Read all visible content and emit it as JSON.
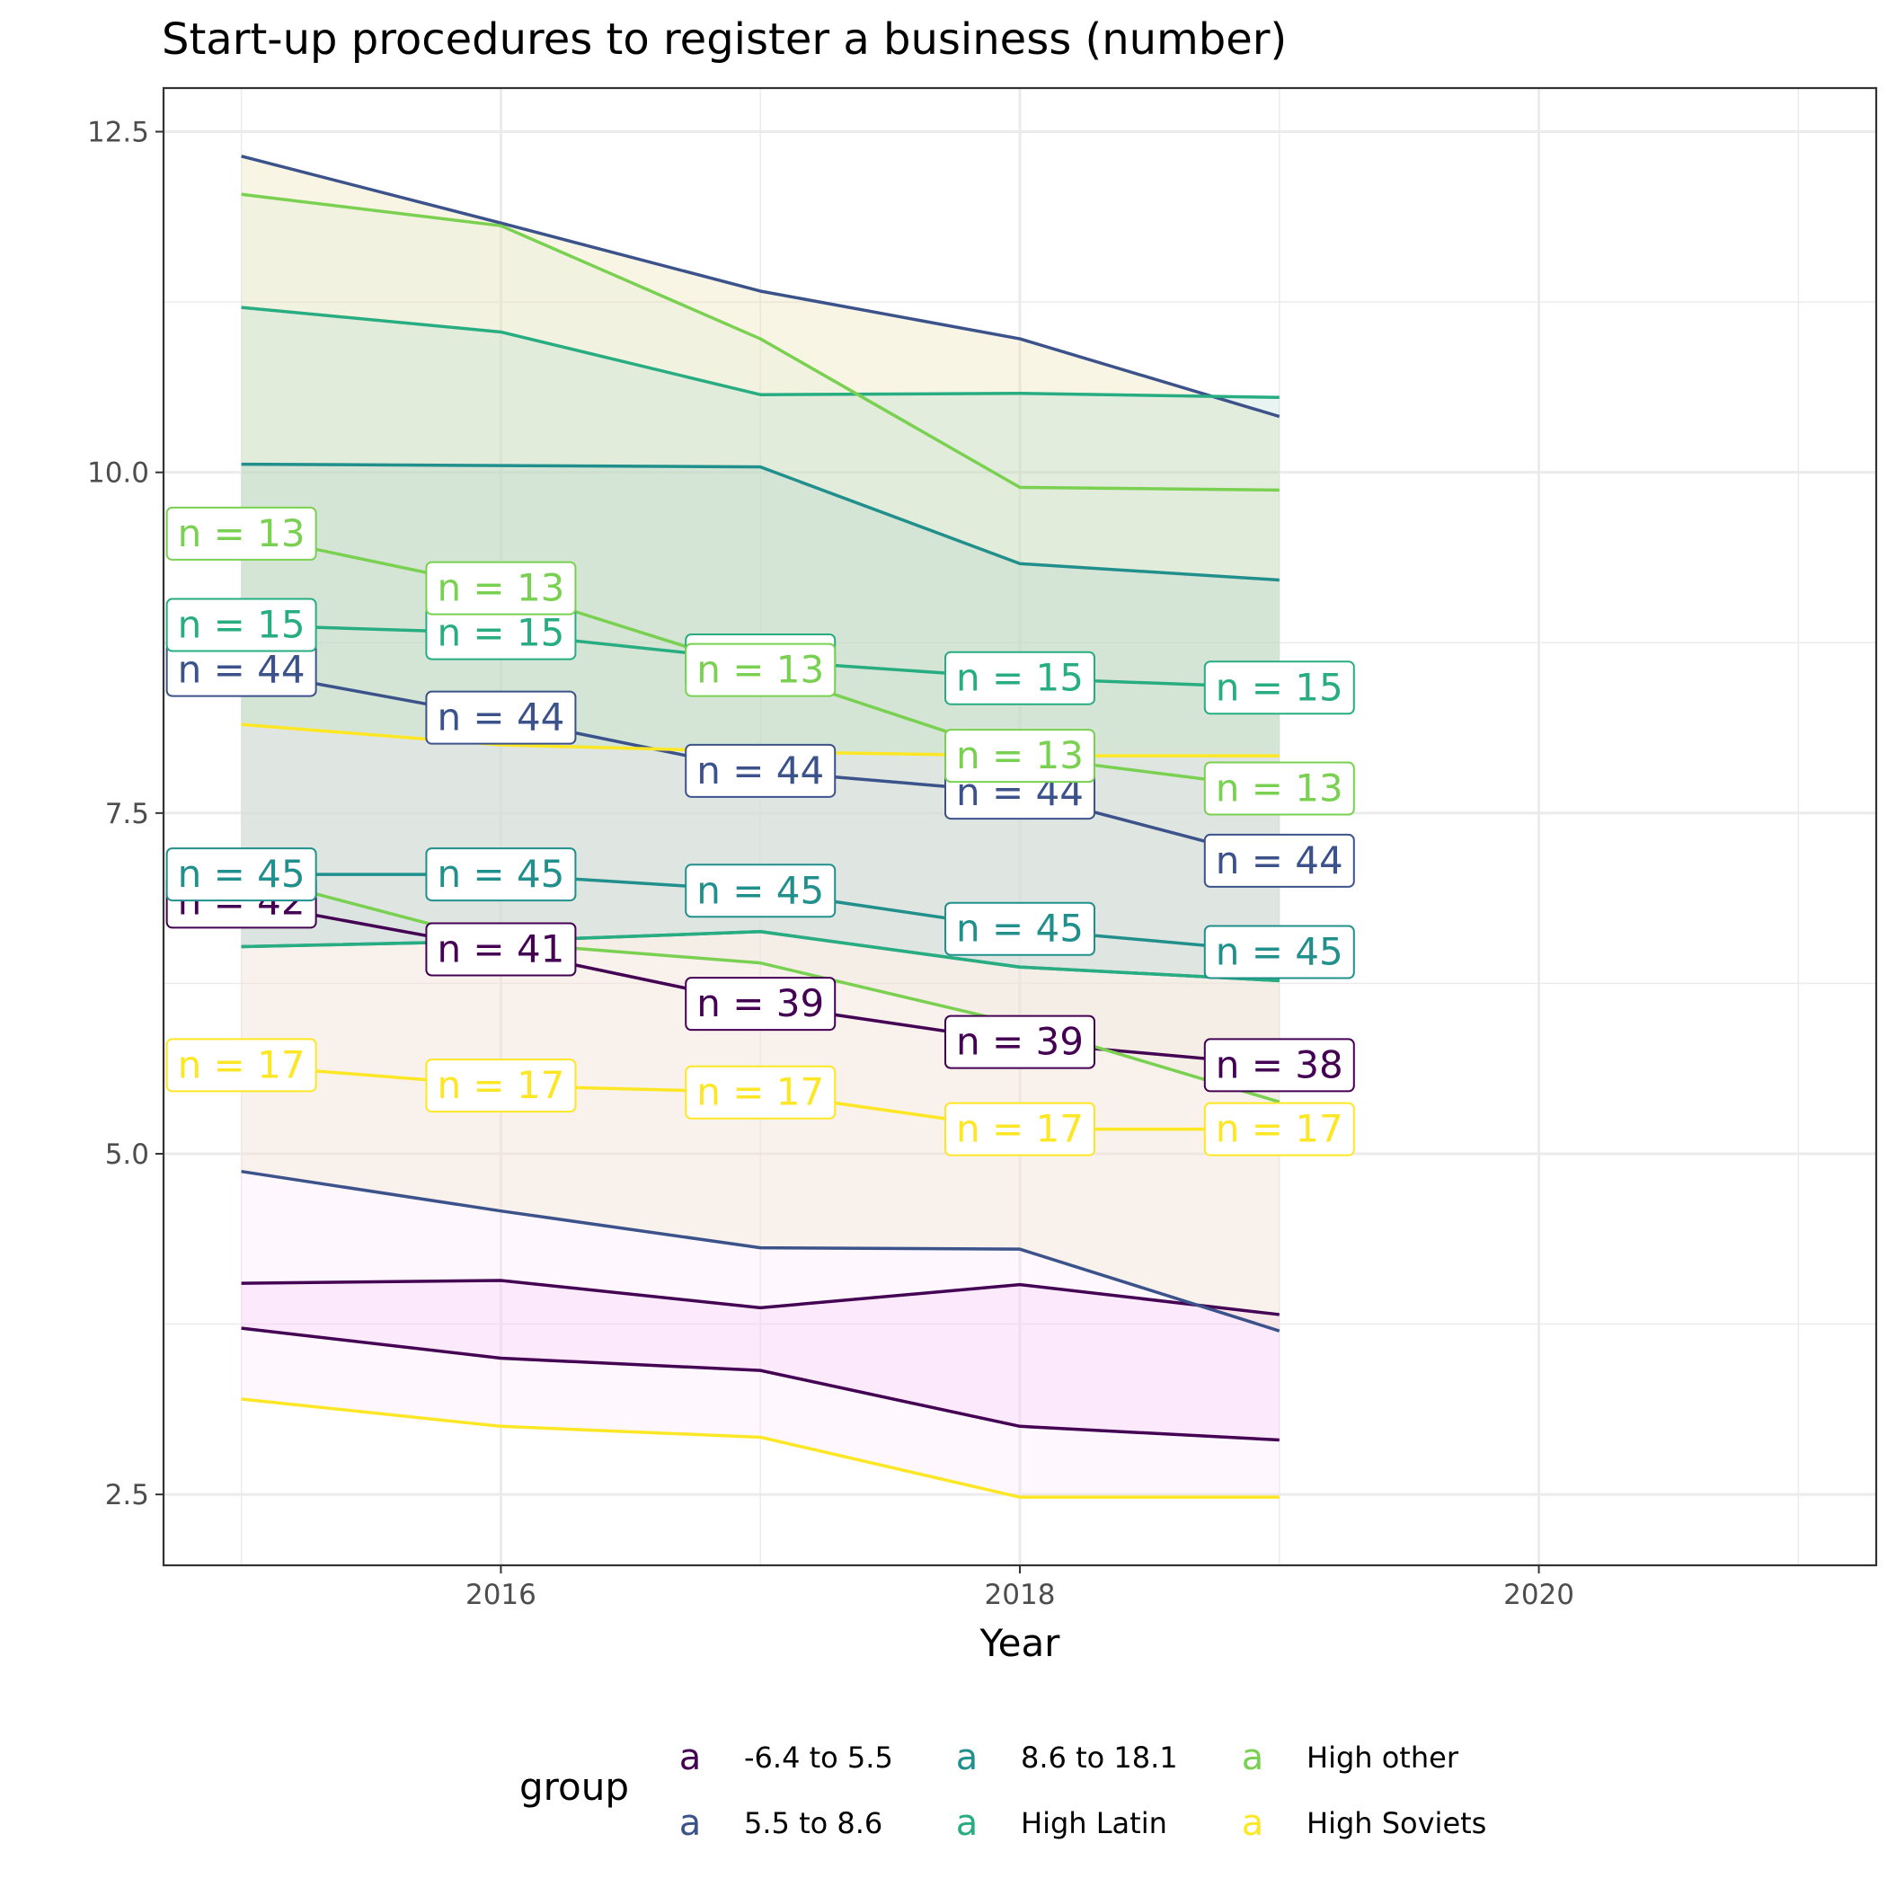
{
  "chart_data": {
    "type": "area",
    "title": "Start-up procedures to register a business (number)",
    "xlabel": "Year",
    "ylabel": "",
    "xlim": [
      2014.7,
      2021.3
    ],
    "ylim": [
      1.98,
      12.82
    ],
    "x_ticks": [
      2016,
      2018,
      2020
    ],
    "y_ticks": [
      2.5,
      5.0,
      7.5,
      10.0,
      12.5
    ],
    "x_tick_labels": [
      "2016",
      "2018",
      "2020"
    ],
    "y_tick_labels": [
      "2.5",
      "5.0",
      "7.5",
      "10.0",
      "12.5"
    ],
    "grid": true,
    "legend": {
      "title": "group",
      "position": "bottom",
      "key_glyph": "a"
    },
    "x": [
      2015,
      2016,
      2017,
      2018,
      2019
    ],
    "series": [
      {
        "name": "-6.4 to 5.5",
        "color": "#440154",
        "fill": "#f5b8f0",
        "mean": [
          6.85,
          6.5,
          6.1,
          5.82,
          5.65
        ],
        "upper": [
          4.05,
          4.07,
          3.87,
          4.04,
          3.82
        ],
        "lower": [
          3.72,
          3.5,
          3.41,
          3.0,
          2.9
        ],
        "n_labels": [
          "n = 42",
          "n = 41",
          "n = 39",
          "n = 39",
          "n = 38"
        ]
      },
      {
        "name": "5.5 to 8.6",
        "color": "#3b528b",
        "fill": "#ebdca0",
        "mean": [
          8.55,
          8.2,
          7.81,
          7.65,
          7.15
        ],
        "upper": [
          12.32,
          11.83,
          11.33,
          10.98,
          10.41
        ],
        "lower": [
          4.87,
          4.58,
          4.31,
          4.3,
          3.7
        ],
        "n_labels": [
          "n = 44",
          "n = 44",
          "n = 44",
          "n = 44",
          "n = 44"
        ]
      },
      {
        "name": "8.6 to 18.1",
        "color": "#21908c",
        "fill": "#9ec4c8",
        "mean": [
          7.05,
          7.05,
          6.93,
          6.65,
          6.48
        ],
        "upper": [
          10.06,
          10.05,
          10.04,
          9.33,
          9.21
        ],
        "lower": [
          6.52,
          6.56,
          6.63,
          6.37,
          6.27
        ],
        "n_labels": [
          "n = 45",
          "n = 45",
          "n = 45",
          "n = 45",
          "n = 45"
        ]
      },
      {
        "name": "High Latin",
        "color": "#27ad81",
        "fill": "#a8d8cc",
        "mean": [
          8.88,
          8.82,
          8.62,
          8.49,
          8.42
        ],
        "upper": [
          11.21,
          11.03,
          10.57,
          10.58,
          10.55
        ],
        "lower": [
          6.52,
          6.56,
          6.63,
          6.37,
          6.27
        ],
        "n_labels": [
          "n = 15",
          "n = 15",
          "n = 15",
          "n = 15",
          "n = 15"
        ]
      },
      {
        "name": "High other",
        "color": "#7ad151",
        "fill": "#dde8d0",
        "mean": [
          9.55,
          9.15,
          8.55,
          7.92,
          7.68
        ],
        "upper": [
          12.04,
          11.81,
          10.98,
          9.89,
          9.87
        ],
        "lower": [
          7.05,
          6.55,
          6.4,
          5.95,
          5.38
        ],
        "n_labels": [
          "n = 13",
          "n = 13",
          "n = 13",
          "n = 13",
          "n = 13"
        ]
      },
      {
        "name": "High Soviets",
        "color": "#fde725",
        "fill": "#fbe5fb",
        "mean": [
          5.65,
          5.5,
          5.45,
          5.18,
          5.18
        ],
        "upper": [
          8.15,
          8.0,
          7.95,
          7.92,
          7.92
        ],
        "lower": [
          3.2,
          3.0,
          2.92,
          2.48,
          2.48
        ],
        "n_labels": [
          "n = 17",
          "n = 17",
          "n = 17",
          "n = 17",
          "n = 17"
        ]
      }
    ]
  }
}
